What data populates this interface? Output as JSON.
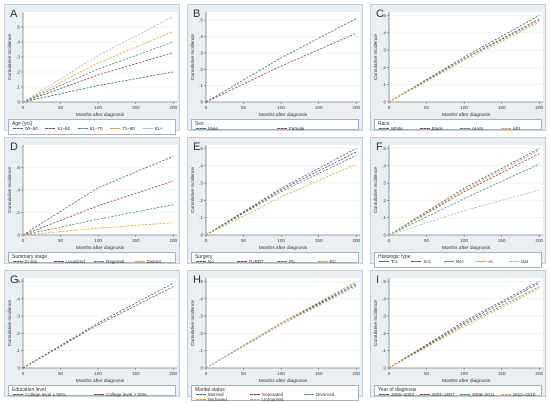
{
  "chart_data": [
    {
      "id": "A",
      "type": "line",
      "xlabel": "Months after diagnosis",
      "ylabel": "Cumulative Incidence",
      "xlim": [
        0,
        205
      ],
      "ylim": [
        0,
        0.6
      ],
      "xticks": [
        0,
        50,
        100,
        150,
        200
      ],
      "yticks": [
        0,
        0.1,
        0.2,
        0.3,
        0.4,
        0.5
      ],
      "legend_title": "Age (yrs)",
      "series": [
        {
          "name": "00–50",
          "color": "#3b6e87",
          "x": [
            0,
            100,
            200
          ],
          "y": [
            0,
            0.11,
            0.2
          ]
        },
        {
          "name": "51–60",
          "color": "#8e3f5a",
          "x": [
            0,
            100,
            200
          ],
          "y": [
            0,
            0.18,
            0.33
          ]
        },
        {
          "name": "61–70",
          "color": "#4f8e76",
          "x": [
            0,
            100,
            200
          ],
          "y": [
            0,
            0.22,
            0.4
          ]
        },
        {
          "name": "71–80",
          "color": "#e8a23a",
          "x": [
            0,
            100,
            200
          ],
          "y": [
            0,
            0.26,
            0.47
          ]
        },
        {
          "name": "81+",
          "color": "#a9b8c6",
          "x": [
            0,
            100,
            200
          ],
          "y": [
            0,
            0.31,
            0.57
          ]
        }
      ]
    },
    {
      "id": "B",
      "type": "line",
      "xlabel": "Months after diagnosis",
      "ylabel": "Cumulative Incidence",
      "xlim": [
        0,
        205
      ],
      "ylim": [
        0,
        0.55
      ],
      "xticks": [
        0,
        50,
        100,
        150,
        200
      ],
      "yticks": [
        0,
        0.1,
        0.2,
        0.3,
        0.4,
        0.5
      ],
      "legend_title": "Sex",
      "series": [
        {
          "name": "Male",
          "color": "#3b6e87",
          "x": [
            0,
            100,
            200
          ],
          "y": [
            0,
            0.27,
            0.51
          ]
        },
        {
          "name": "Female",
          "color": "#8e3f5a",
          "x": [
            0,
            100,
            200
          ],
          "y": [
            0,
            0.22,
            0.42
          ]
        }
      ]
    },
    {
      "id": "C",
      "type": "line",
      "xlabel": "Months after diagnosis",
      "ylabel": "Cumulative Incidence",
      "xlim": [
        0,
        205
      ],
      "ylim": [
        0,
        0.52
      ],
      "xticks": [
        0,
        50,
        100,
        150,
        200
      ],
      "yticks": [
        0,
        0.1,
        0.2,
        0.3,
        0.4,
        0.5
      ],
      "legend_title": "Race",
      "series": [
        {
          "name": "White",
          "color": "#3b6e87",
          "x": [
            0,
            100,
            200
          ],
          "y": [
            0,
            0.26,
            0.5
          ]
        },
        {
          "name": "Black",
          "color": "#8e3f5a",
          "x": [
            0,
            100,
            200
          ],
          "y": [
            0,
            0.25,
            0.48
          ]
        },
        {
          "name": "AIAN",
          "color": "#4f8e76",
          "x": [
            0,
            100,
            200
          ],
          "y": [
            0,
            0.25,
            0.47
          ]
        },
        {
          "name": "API",
          "color": "#e8a23a",
          "x": [
            0,
            100,
            200
          ],
          "y": [
            0,
            0.24,
            0.46
          ]
        }
      ]
    },
    {
      "id": "D",
      "type": "line",
      "xlabel": "Months after diagnosis",
      "ylabel": "Cumulative Incidence",
      "xlim": [
        0,
        205
      ],
      "ylim": [
        0,
        0.8
      ],
      "xticks": [
        0,
        50,
        100,
        150,
        200
      ],
      "yticks": [
        0,
        0.2,
        0.4,
        0.6
      ],
      "legend_title": "Summary stage",
      "series": [
        {
          "name": "In situ",
          "color": "#3b6e87",
          "x": [
            0,
            100,
            200
          ],
          "y": [
            0,
            0.42,
            0.7
          ]
        },
        {
          "name": "Localized",
          "color": "#8e3f5a",
          "x": [
            0,
            100,
            200
          ],
          "y": [
            0,
            0.26,
            0.48
          ]
        },
        {
          "name": "Regional",
          "color": "#4f8e76",
          "x": [
            0,
            100,
            200
          ],
          "y": [
            0,
            0.14,
            0.27
          ]
        },
        {
          "name": "Distant",
          "color": "#e8a23a",
          "x": [
            0,
            100,
            200
          ],
          "y": [
            0,
            0.06,
            0.11
          ]
        }
      ]
    },
    {
      "id": "E",
      "type": "line",
      "xlabel": "Months after diagnosis",
      "ylabel": "Cumulative Incidence",
      "xlim": [
        0,
        205
      ],
      "ylim": [
        0,
        0.52
      ],
      "xticks": [
        0,
        50,
        100,
        150,
        200
      ],
      "yticks": [
        0,
        0.1,
        0.2,
        0.3,
        0.4,
        0.5
      ],
      "legend_title": "Surgery",
      "series": [
        {
          "name": "No",
          "color": "#3b6e87",
          "x": [
            0,
            100,
            200
          ],
          "y": [
            0,
            0.27,
            0.5
          ]
        },
        {
          "name": "TURBT",
          "color": "#8e3f5a",
          "x": [
            0,
            100,
            200
          ],
          "y": [
            0,
            0.26,
            0.48
          ]
        },
        {
          "name": "PC",
          "color": "#4f8e76",
          "x": [
            0,
            100,
            200
          ],
          "y": [
            0,
            0.25,
            0.46
          ]
        },
        {
          "name": "RC",
          "color": "#e8a23a",
          "x": [
            0,
            100,
            200
          ],
          "y": [
            0,
            0.22,
            0.41
          ]
        }
      ]
    },
    {
      "id": "F",
      "type": "line",
      "xlabel": "Months after diagnosis",
      "ylabel": "Cumulative Incidence",
      "xlim": [
        0,
        205
      ],
      "ylim": [
        0,
        0.52
      ],
      "xticks": [
        0,
        50,
        100,
        150,
        200
      ],
      "yticks": [
        0,
        0.1,
        0.2,
        0.3,
        0.4,
        0.5
      ],
      "legend_title": "Histologic type",
      "series": [
        {
          "name": "Tcc",
          "color": "#3b6e87",
          "x": [
            0,
            100,
            200
          ],
          "y": [
            0,
            0.27,
            0.5
          ]
        },
        {
          "name": "Scc",
          "color": "#8e3f5a",
          "x": [
            0,
            100,
            200
          ],
          "y": [
            0,
            0.25,
            0.47
          ]
        },
        {
          "name": "Nec",
          "color": "#4f8e76",
          "x": [
            0,
            100,
            200
          ],
          "y": [
            0,
            0.21,
            0.41
          ]
        },
        {
          "name": "Ac",
          "color": "#e8a23a",
          "x": [
            0,
            100,
            200
          ],
          "y": [
            0,
            0.26,
            0.49
          ]
        },
        {
          "name": "Oat",
          "color": "#a9b8c6",
          "x": [
            0,
            100,
            200
          ],
          "y": [
            0,
            0.14,
            0.26
          ]
        }
      ]
    },
    {
      "id": "G",
      "type": "line",
      "xlabel": "Months after diagnosis",
      "ylabel": "Cumulative Incidence",
      "xlim": [
        0,
        205
      ],
      "ylim": [
        0,
        0.52
      ],
      "xticks": [
        0,
        50,
        100,
        150,
        200
      ],
      "yticks": [
        0,
        0.1,
        0.2,
        0.3,
        0.4,
        0.5
      ],
      "legend_title": "Education level",
      "series": [
        {
          "name": "College level ≤ 50%",
          "color": "#3b6e87",
          "x": [
            0,
            100,
            200
          ],
          "y": [
            0,
            0.26,
            0.49
          ]
        },
        {
          "name": "College level > 50%",
          "color": "#8e3f5a",
          "x": [
            0,
            100,
            200
          ],
          "y": [
            0,
            0.25,
            0.47
          ]
        }
      ]
    },
    {
      "id": "H",
      "type": "line",
      "xlabel": "Months after diagnosis",
      "ylabel": "Cumulative Incidence",
      "xlim": [
        0,
        205
      ],
      "ylim": [
        0,
        0.52
      ],
      "xticks": [
        0,
        50,
        100,
        150,
        200
      ],
      "yticks": [
        0,
        0.1,
        0.2,
        0.3,
        0.4,
        0.5
      ],
      "legend_title": "Marital status",
      "series": [
        {
          "name": "Married",
          "color": "#3b6e87",
          "x": [
            0,
            100,
            200
          ],
          "y": [
            0,
            0.26,
            0.49
          ]
        },
        {
          "name": "Separated",
          "color": "#8e3f5a",
          "x": [
            0,
            100,
            200
          ],
          "y": [
            0,
            0.26,
            0.48
          ]
        },
        {
          "name": "Divorced",
          "color": "#4f8e76",
          "x": [
            0,
            100,
            200
          ],
          "y": [
            0,
            0.25,
            0.48
          ]
        },
        {
          "name": "Widowed",
          "color": "#e8a23a",
          "x": [
            0,
            100,
            200
          ],
          "y": [
            0,
            0.26,
            0.5
          ]
        },
        {
          "name": "Unmarried",
          "color": "#a9b8c6",
          "x": [
            0,
            100,
            200
          ],
          "y": [
            0,
            0.25,
            0.47
          ]
        }
      ]
    },
    {
      "id": "I",
      "type": "line",
      "xlabel": "Months after diagnosis",
      "ylabel": "Cumulative Incidence",
      "xlim": [
        0,
        205
      ],
      "ylim": [
        0,
        0.52
      ],
      "xticks": [
        0,
        50,
        100,
        150,
        200
      ],
      "yticks": [
        0,
        0.1,
        0.2,
        0.3,
        0.4,
        0.5
      ],
      "legend_title": "Year of diagnosis",
      "series": [
        {
          "name": "2000–2003",
          "color": "#3b6e87",
          "x": [
            0,
            100,
            200
          ],
          "y": [
            0,
            0.27,
            0.5
          ]
        },
        {
          "name": "2004–2007",
          "color": "#8e3f5a",
          "x": [
            0,
            100,
            200
          ],
          "y": [
            0,
            0.26,
            0.49
          ]
        },
        {
          "name": "2008–2011",
          "color": "#4f8e76",
          "x": [
            0,
            100,
            200
          ],
          "y": [
            0,
            0.25,
            0.47
          ]
        },
        {
          "name": "2012–2016",
          "color": "#e8a23a",
          "x": [
            0,
            100,
            200
          ],
          "y": [
            0,
            0.24,
            0.46
          ]
        }
      ]
    }
  ]
}
